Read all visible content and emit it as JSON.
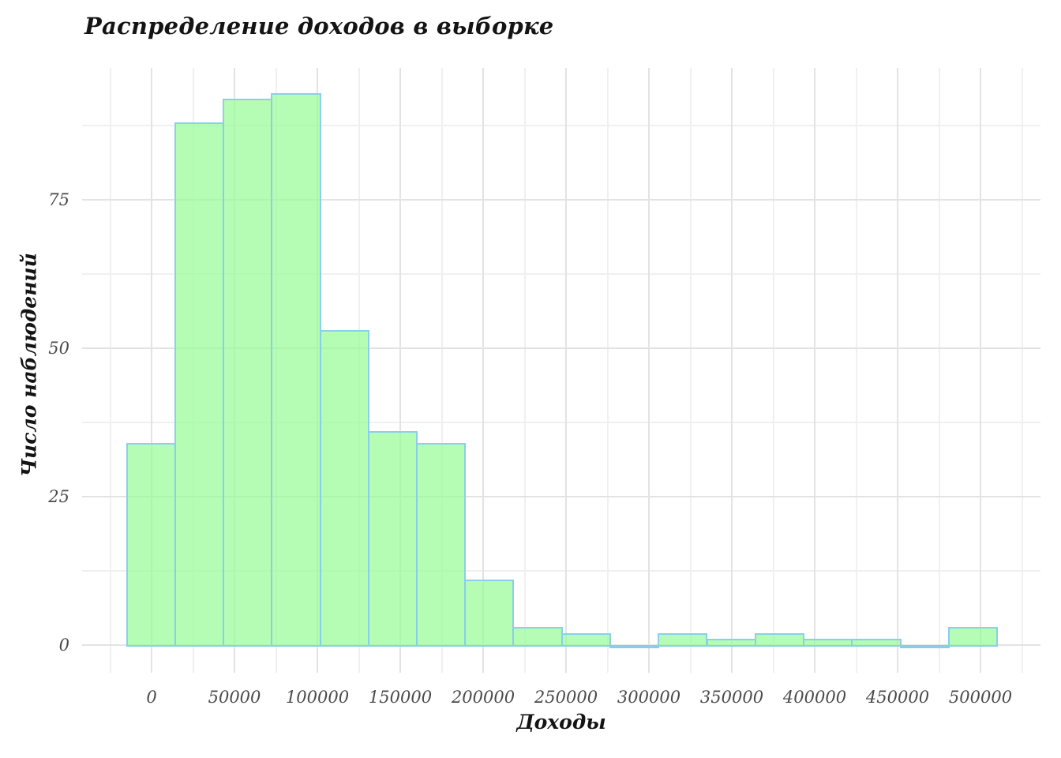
{
  "chart": {
    "title": "Распределение доходов в выборке",
    "xlabel": "Доходы",
    "ylabel": "Число наблюдений"
  },
  "chart_data": {
    "type": "bar",
    "subtype": "histogram",
    "title": "Распределение доходов в выборке",
    "xlabel": "Доходы",
    "ylabel": "Число наблюдений",
    "bin_width": 29167,
    "bin_edges": [
      -15000,
      14167,
      43333,
      72500,
      101667,
      130833,
      160000,
      189167,
      218333,
      247500,
      276667,
      305833,
      335000,
      364167,
      393333,
      422500,
      451667,
      480833,
      510000
    ],
    "counts": [
      34,
      88,
      92,
      93,
      53,
      36,
      34,
      11,
      3,
      2,
      0,
      2,
      1,
      2,
      1,
      1,
      0,
      3
    ],
    "x_ticks": [
      0,
      50000,
      100000,
      150000,
      200000,
      250000,
      300000,
      350000,
      400000,
      450000,
      500000
    ],
    "y_ticks": [
      0,
      25,
      50,
      75
    ],
    "x_minor_step": 25000,
    "y_minor_step": 12.5,
    "xlim": [
      -42000,
      536000
    ],
    "ylim": [
      -4.6,
      97.2
    ],
    "grid": true,
    "legend": false,
    "colors": {
      "bar_fill": "rgba(152,251,152,0.72)",
      "bar_border": "rgba(135,206,235,0.95)",
      "grid_major": "#e3e3e3",
      "grid_minor": "#f0f0f0",
      "tick_text": "#4a4a4a",
      "title_text": "#141414",
      "background": "#ffffff"
    }
  }
}
